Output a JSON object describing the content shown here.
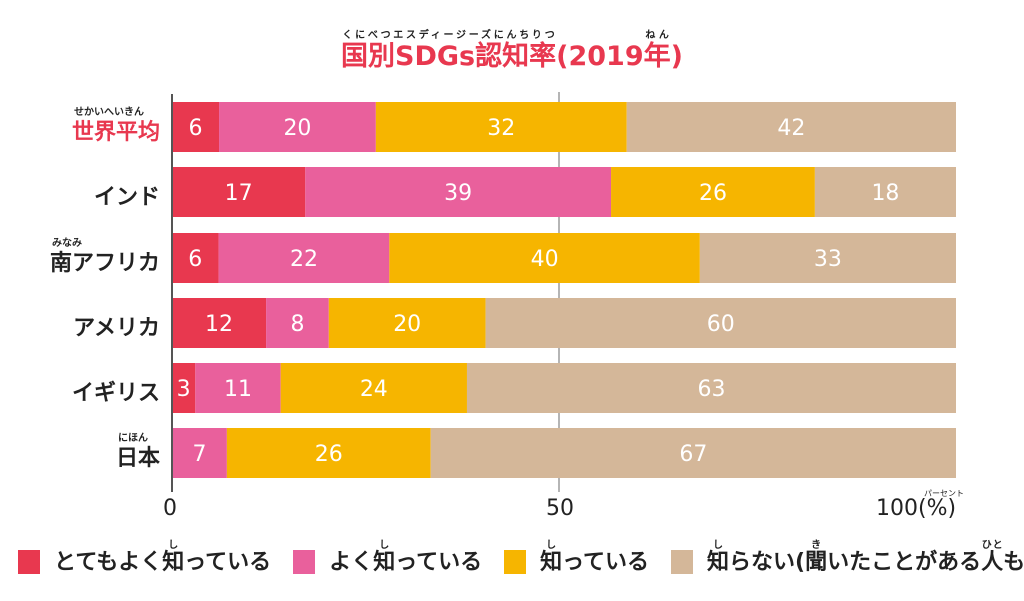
{
  "chart_data": {
    "type": "bar",
    "orientation": "horizontal-stacked",
    "title": "国別SDGs認知率(2019年)",
    "title_ruby": [
      {
        "base": "国別SDGs認知率",
        "rt": "くにべつエスディージーズにんちりつ"
      },
      {
        "base": "(2019",
        "rt": ""
      },
      {
        "base": "年",
        "rt": "ねん"
      },
      {
        "base": ")",
        "rt": ""
      }
    ],
    "categories": [
      {
        "label": "世界平均",
        "ruby": "せかいへいきん",
        "highlight": true
      },
      {
        "label": "インド",
        "ruby": ""
      },
      {
        "label": "南アフリカ",
        "ruby_base": "南",
        "ruby": "みなみ",
        "rest": "アフリカ"
      },
      {
        "label": "アメリカ",
        "ruby": ""
      },
      {
        "label": "イギリス",
        "ruby": ""
      },
      {
        "label": "日本",
        "ruby": "にほん"
      }
    ],
    "series": [
      {
        "name": "とてもよく知っている",
        "color": "#e8384f",
        "values": [
          6,
          17,
          6,
          12,
          3,
          0
        ]
      },
      {
        "name": "よく知っている",
        "color": "#e9609c",
        "values": [
          20,
          39,
          22,
          8,
          11,
          7
        ]
      },
      {
        "name": "知っている",
        "color": "#f6b500",
        "values": [
          32,
          26,
          40,
          20,
          24,
          26
        ]
      },
      {
        "name": "知らない(聞いたことがある人も含む)",
        "color": "#d4b799",
        "values": [
          42,
          18,
          33,
          60,
          63,
          67
        ]
      }
    ],
    "xlim": [
      0,
      100
    ],
    "xticks": [
      "0",
      "50",
      "100(%)"
    ],
    "xunit_ruby": "パーセント",
    "grid": "vertical at 50",
    "legend_position": "bottom",
    "legend_ruby": [
      [
        {
          "t": "とてもよく"
        },
        {
          "t": "知",
          "r": "し"
        },
        {
          "t": "っている"
        }
      ],
      [
        {
          "t": "よく"
        },
        {
          "t": "知",
          "r": "し"
        },
        {
          "t": "っている"
        }
      ],
      [
        {
          "t": "知",
          "r": "し"
        },
        {
          "t": "っている"
        }
      ],
      [
        {
          "t": "知",
          "r": "し"
        },
        {
          "t": "らない("
        },
        {
          "t": "聞",
          "r": "き"
        },
        {
          "t": "いたことがある"
        },
        {
          "t": "人",
          "r": "ひと"
        },
        {
          "t": "も"
        },
        {
          "t": "含",
          "r": "ふく"
        },
        {
          "t": "む)"
        }
      ]
    ]
  }
}
